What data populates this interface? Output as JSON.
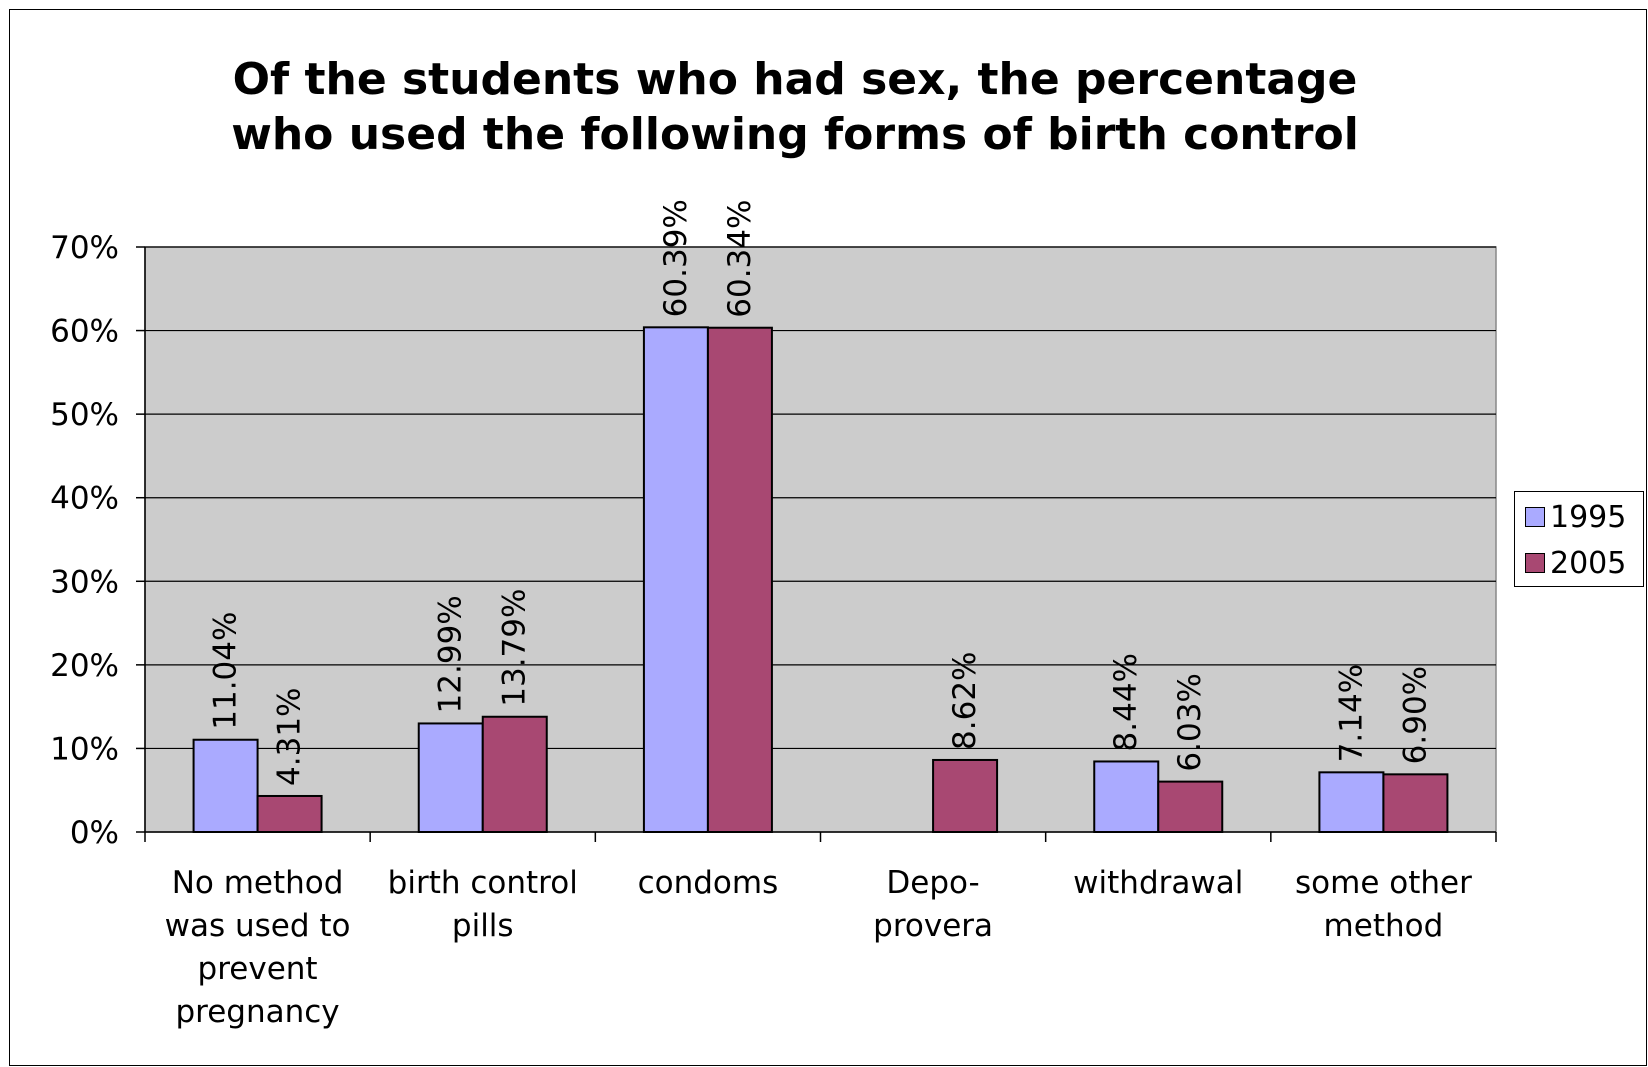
{
  "chart_data": {
    "type": "bar",
    "title": "Of the students who had sex, the percentage\nwho used the following forms of birth control",
    "categories": [
      "No method was used to prevent pregnancy",
      "birth control pills",
      "condoms",
      "Depo-provera",
      "withdrawal",
      "some other method"
    ],
    "category_label_lines": [
      [
        "No method",
        "was used to",
        "prevent",
        "pregnancy"
      ],
      [
        "birth control",
        "pills"
      ],
      [
        "condoms"
      ],
      [
        "Depo-",
        "provera"
      ],
      [
        "withdrawal"
      ],
      [
        "some other",
        "method"
      ]
    ],
    "series": [
      {
        "name": "1995",
        "color": "#aaaaff",
        "values": [
          11.04,
          12.99,
          60.39,
          null,
          8.44,
          7.14
        ],
        "labels": [
          "11.04%",
          "12.99%",
          "60.39%",
          null,
          "8.44%",
          "7.14%"
        ]
      },
      {
        "name": "2005",
        "color": "#a84872",
        "values": [
          4.31,
          13.79,
          60.34,
          8.62,
          6.03,
          6.9
        ],
        "labels": [
          "4.31%",
          "13.79%",
          "60.34%",
          "8.62%",
          "6.03%",
          "6.90%"
        ]
      }
    ],
    "ylim": [
      0,
      70
    ],
    "yticks": [
      0,
      10,
      20,
      30,
      40,
      50,
      60,
      70
    ],
    "ytick_labels": [
      "0%",
      "10%",
      "20%",
      "30%",
      "40%",
      "50%",
      "60%",
      "70%"
    ],
    "xlabel": "",
    "ylabel": "",
    "grid": true,
    "plot_background": "#cccccc",
    "legend_position": "right"
  }
}
